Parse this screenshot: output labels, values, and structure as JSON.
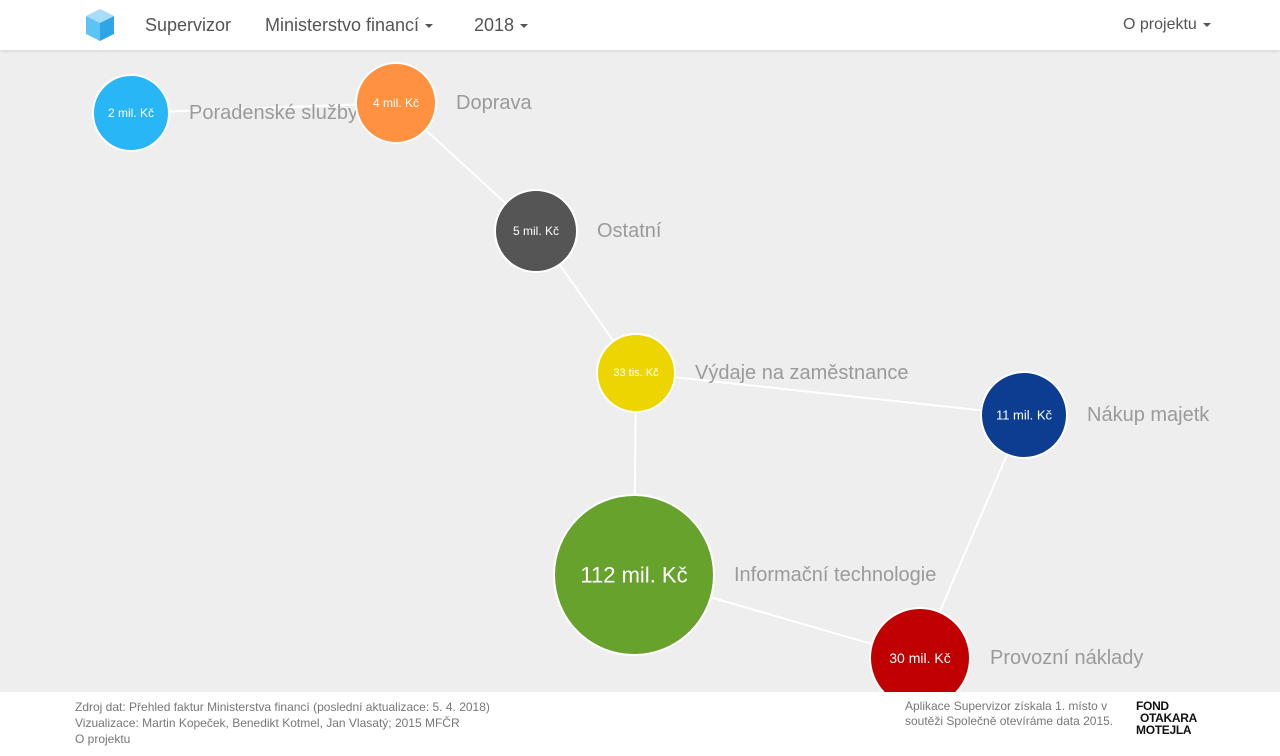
{
  "navbar": {
    "brand": "Supervizor",
    "ministry": "Ministerstvo financí",
    "year": "2018",
    "about": "O projektu"
  },
  "colors": {
    "blue": "#29b6f6",
    "orange": "#ff9141",
    "darkgray": "#555555",
    "yellow": "#ecd500",
    "navy": "#0d3d91",
    "green": "#66a22c",
    "red": "#c00000"
  },
  "graph": {
    "nodes": [
      {
        "id": "poradenske",
        "name": "Poradenské služby",
        "value": "2 mil. Kč",
        "color_key": "blue"
      },
      {
        "id": "doprava",
        "name": "Doprava",
        "value": "4 mil. Kč",
        "color_key": "orange"
      },
      {
        "id": "ostatni",
        "name": "Ostatní",
        "value": "5 mil. Kč",
        "color_key": "darkgray"
      },
      {
        "id": "vydaje",
        "name": "Výdaje na zaměstnance",
        "value": "33 tis. Kč",
        "color_key": "yellow"
      },
      {
        "id": "nakup",
        "name": "Nákup majetk",
        "value": "11 mil. Kč",
        "color_key": "navy"
      },
      {
        "id": "it",
        "name": "Informační technologie",
        "value": "112 mil. Kč",
        "color_key": "green"
      },
      {
        "id": "provozni",
        "name": "Provozní náklady",
        "value": "30 mil. Kč",
        "color_key": "red"
      }
    ],
    "links": [
      [
        "poradenske",
        "doprava"
      ],
      [
        "doprava",
        "ostatni"
      ],
      [
        "ostatni",
        "vydaje"
      ],
      [
        "vydaje",
        "it"
      ],
      [
        "vydaje",
        "nakup"
      ],
      [
        "nakup",
        "provozni"
      ],
      [
        "it",
        "provozni"
      ]
    ]
  },
  "footer": {
    "source": "Zdroj dat: Přehled faktur Ministerstva financí (poslední aktualizace: 5. 4. 2018)",
    "credits": "Vizualizace: Martin Kopeček, Benedikt Kotmel, Jan Vlasatý; 2015 MFČR",
    "about_link": "O projektu",
    "award": "Aplikace Supervizor získala 1. místo v soutěži Společně otevíráme data 2015.",
    "logo_lines": [
      "FOND",
      "OTAKARA",
      "MOTEJLA"
    ]
  }
}
